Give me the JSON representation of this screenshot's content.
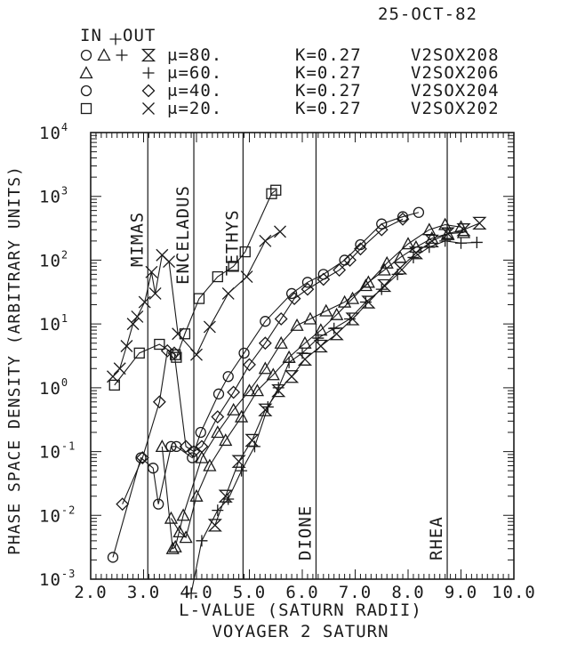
{
  "header": {
    "date": "25-OCT-82",
    "in_label": "IN",
    "out_label": "OUT",
    "legend_rows": [
      {
        "in_syms": "◯ △ +",
        "mu": "μ=80.",
        "k": "K=0.27",
        "file": "V2SOX208"
      },
      {
        "in_syms": "",
        "mu": "μ=60.",
        "k": "K=0.27",
        "file": "V2SOX206"
      },
      {
        "in_syms": "",
        "mu": "μ=40.",
        "k": "K=0.27",
        "file": "V2SOX204"
      },
      {
        "in_syms": "",
        "mu": "μ=20.",
        "k": "K=0.27",
        "file": "V2SOX202"
      }
    ]
  },
  "chart_data": {
    "type": "scatter",
    "title": "VOYAGER 2 SATURN",
    "xlabel": "L-VALUE (SATURN RADII)",
    "ylabel": "PHASE SPACE DENSITY (ARBITRARY UNITS)",
    "x_ticks": [
      "2.0",
      "3.0",
      "4.0",
      "5.0",
      "6.0",
      "7.0",
      "8.0",
      "9.0",
      "10.0"
    ],
    "y_ticks": [
      "10^-3",
      "10^-2",
      "10^-1",
      "10^0",
      "10^1",
      "10^2",
      "10^3",
      "10^4"
    ],
    "xlim": [
      2.0,
      10.0
    ],
    "ylim": [
      0.001,
      10000
    ],
    "yscale": "log",
    "grid": false,
    "moons": [
      {
        "name": "MIMAS",
        "l": 3.08
      },
      {
        "name": "ENCELADUS",
        "l": 3.95
      },
      {
        "name": "TETHYS",
        "l": 4.88
      },
      {
        "name": "DIONE",
        "l": 6.26
      },
      {
        "name": "RHEA",
        "l": 8.74
      }
    ],
    "series": [
      {
        "name": "μ=20. IN",
        "marker": "square",
        "points": [
          [
            2.45,
            1.1
          ],
          [
            2.92,
            3.5
          ],
          [
            3.3,
            4.8
          ],
          [
            3.6,
            3.3
          ],
          [
            3.62,
            3.0
          ],
          [
            3.78,
            7.0
          ],
          [
            4.05,
            25
          ],
          [
            4.4,
            55
          ],
          [
            4.7,
            80
          ],
          [
            4.92,
            135
          ],
          [
            5.42,
            1100
          ],
          [
            5.5,
            1250
          ]
        ]
      },
      {
        "name": "μ=20. OUT",
        "marker": "x",
        "points": [
          [
            2.42,
            1.5
          ],
          [
            2.55,
            2.0
          ],
          [
            2.68,
            4.5
          ],
          [
            2.8,
            10
          ],
          [
            2.88,
            13
          ],
          [
            3.02,
            22
          ],
          [
            3.15,
            65
          ],
          [
            3.22,
            30
          ],
          [
            3.35,
            120
          ],
          [
            3.48,
            95
          ],
          [
            3.65,
            7
          ],
          [
            4.0,
            3.3
          ],
          [
            4.25,
            9
          ],
          [
            4.6,
            30
          ],
          [
            4.95,
            55
          ],
          [
            5.3,
            200
          ],
          [
            5.58,
            280
          ]
        ]
      },
      {
        "name": "μ=40. IN",
        "marker": "circle",
        "points": [
          [
            2.42,
            0.0022
          ],
          [
            2.95,
            0.08
          ],
          [
            3.18,
            0.055
          ],
          [
            3.28,
            0.015
          ],
          [
            3.52,
            0.12
          ],
          [
            3.62,
            0.12
          ],
          [
            3.92,
            0.08
          ],
          [
            4.08,
            0.2
          ],
          [
            4.42,
            0.8
          ],
          [
            4.6,
            1.5
          ],
          [
            4.9,
            3.5
          ],
          [
            5.3,
            11
          ],
          [
            5.8,
            30
          ],
          [
            6.1,
            45
          ],
          [
            6.4,
            60
          ],
          [
            6.8,
            100
          ],
          [
            7.1,
            175
          ],
          [
            7.5,
            370
          ],
          [
            7.9,
            480
          ],
          [
            8.2,
            560
          ]
        ]
      },
      {
        "name": "μ=40. OUT",
        "marker": "diamond",
        "points": [
          [
            2.6,
            0.015
          ],
          [
            2.98,
            0.08
          ],
          [
            3.3,
            0.6
          ],
          [
            3.45,
            3.8
          ],
          [
            3.58,
            3.5
          ],
          [
            3.8,
            0.12
          ],
          [
            3.95,
            0.1
          ],
          [
            4.1,
            0.12
          ],
          [
            4.4,
            0.35
          ],
          [
            4.7,
            0.85
          ],
          [
            5.0,
            2.3
          ],
          [
            5.3,
            5.0
          ],
          [
            5.6,
            12
          ],
          [
            5.85,
            25
          ],
          [
            6.1,
            35
          ],
          [
            6.4,
            50
          ],
          [
            6.7,
            70
          ],
          [
            6.9,
            100
          ],
          [
            7.1,
            150
          ],
          [
            7.5,
            300
          ],
          [
            7.9,
            440
          ]
        ]
      },
      {
        "name": "μ=60. IN",
        "marker": "triangle",
        "points": [
          [
            3.35,
            0.12
          ],
          [
            3.55,
            0.003
          ],
          [
            3.6,
            0.0032
          ],
          [
            3.75,
            0.01
          ],
          [
            4.1,
            0.08
          ],
          [
            4.4,
            0.2
          ],
          [
            4.7,
            0.45
          ],
          [
            5.0,
            0.9
          ],
          [
            5.3,
            2.0
          ],
          [
            5.6,
            5.0
          ],
          [
            5.9,
            9.5
          ],
          [
            6.15,
            12
          ],
          [
            6.45,
            16
          ],
          [
            6.8,
            22
          ],
          [
            7.2,
            40
          ],
          [
            7.6,
            90
          ],
          [
            8.0,
            180
          ],
          [
            8.4,
            300
          ],
          [
            8.7,
            360
          ],
          [
            9.0,
            330
          ]
        ]
      },
      {
        "name": "μ=60. OUT",
        "marker": "triangle",
        "points": [
          [
            3.52,
            0.009
          ],
          [
            3.68,
            0.0055
          ],
          [
            3.8,
            0.0045
          ],
          [
            4.0,
            0.02
          ],
          [
            4.25,
            0.06
          ],
          [
            4.55,
            0.15
          ],
          [
            4.85,
            0.35
          ],
          [
            5.15,
            0.9
          ],
          [
            5.45,
            1.6
          ],
          [
            5.75,
            3.0
          ],
          [
            6.05,
            5.0
          ],
          [
            6.35,
            8.0
          ],
          [
            6.65,
            14
          ],
          [
            6.95,
            25
          ],
          [
            7.25,
            45
          ],
          [
            7.55,
            70
          ],
          [
            7.85,
            110
          ],
          [
            8.15,
            160
          ],
          [
            8.45,
            220
          ],
          [
            8.75,
            260
          ],
          [
            9.05,
            270
          ]
        ]
      },
      {
        "name": "μ=80. IN",
        "marker": "plus",
        "points": [
          [
            3.9,
            0.0006
          ],
          [
            4.1,
            0.004
          ],
          [
            4.4,
            0.012
          ],
          [
            4.6,
            0.018
          ],
          [
            4.85,
            0.05
          ],
          [
            5.1,
            0.12
          ],
          [
            5.35,
            0.5
          ],
          [
            5.55,
            1.0
          ],
          [
            5.75,
            2.5
          ],
          [
            6.0,
            3.5
          ],
          [
            6.3,
            6.0
          ],
          [
            6.6,
            8.5
          ],
          [
            6.9,
            12
          ],
          [
            7.2,
            22
          ],
          [
            7.5,
            35
          ],
          [
            7.8,
            60
          ],
          [
            8.1,
            110
          ],
          [
            8.4,
            160
          ],
          [
            8.7,
            200
          ],
          [
            9.0,
            185
          ],
          [
            9.3,
            190
          ]
        ]
      },
      {
        "name": "μ=80. OUT",
        "marker": "hourglass",
        "points": [
          [
            4.35,
            0.007
          ],
          [
            4.55,
            0.02
          ],
          [
            4.8,
            0.07
          ],
          [
            5.05,
            0.15
          ],
          [
            5.3,
            0.45
          ],
          [
            5.55,
            0.9
          ],
          [
            5.8,
            1.5
          ],
          [
            6.05,
            2.8
          ],
          [
            6.35,
            4.5
          ],
          [
            6.65,
            7.0
          ],
          [
            6.95,
            12
          ],
          [
            7.25,
            22
          ],
          [
            7.55,
            40
          ],
          [
            7.85,
            75
          ],
          [
            8.15,
            130
          ],
          [
            8.45,
            200
          ],
          [
            8.75,
            260
          ],
          [
            9.05,
            300
          ],
          [
            9.35,
            380
          ]
        ]
      }
    ]
  }
}
